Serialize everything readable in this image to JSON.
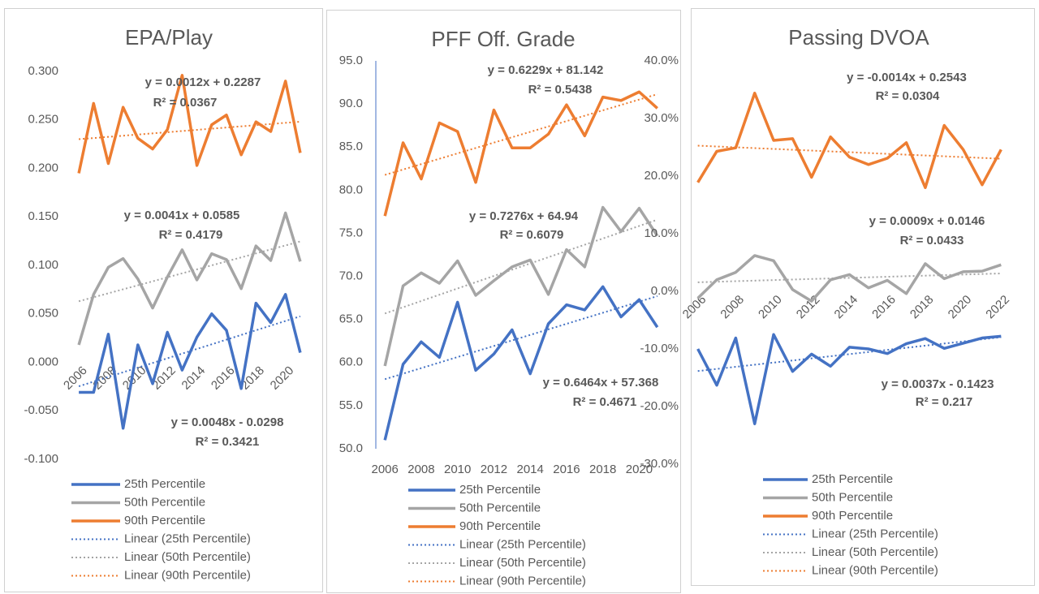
{
  "chart_data": [
    {
      "type": "line",
      "title": "EPA/Play",
      "x": [
        2006,
        2007,
        2008,
        2009,
        2010,
        2011,
        2012,
        2013,
        2014,
        2015,
        2016,
        2017,
        2018,
        2019,
        2020,
        2021
      ],
      "xlim": [
        2005.5,
        2021.5
      ],
      "xticks": [
        2006,
        2008,
        2010,
        2012,
        2014,
        2016,
        2018,
        2020
      ],
      "ylim": [
        -0.1,
        0.3
      ],
      "yticks": [
        {
          "value": -0.1,
          "label": "-0.100"
        },
        {
          "value": -0.05,
          "label": "-0.050"
        },
        {
          "value": 0,
          "label": "0.000"
        },
        {
          "value": 0.05,
          "label": "0.050"
        },
        {
          "value": 0.1,
          "label": "0.100"
        },
        {
          "value": 0.15,
          "label": "0.150"
        },
        {
          "value": 0.2,
          "label": "0.200"
        },
        {
          "value": 0.25,
          "label": "0.250"
        },
        {
          "value": 0.3,
          "label": "0.300"
        }
      ],
      "series": [
        {
          "name": "25th Percentile",
          "color": "#4472c4",
          "values": [
            -0.031,
            -0.031,
            0.029,
            -0.068,
            0.018,
            -0.022,
            0.031,
            -0.008,
            0.026,
            0.05,
            0.033,
            -0.027,
            0.061,
            0.041,
            0.07,
            0.01
          ],
          "trendline": {
            "name": "Linear (25th Percentile)",
            "equation": "y = 0.0048x - 0.0298",
            "r_squared": "R² = 0.3421"
          }
        },
        {
          "name": "50th Percentile",
          "color": "#a5a5a5",
          "values": [
            0.018,
            0.07,
            0.098,
            0.107,
            0.086,
            0.056,
            0.088,
            0.116,
            0.085,
            0.112,
            0.106,
            0.076,
            0.12,
            0.105,
            0.154,
            0.104
          ],
          "trendline": {
            "name": "Linear (50th Percentile)",
            "equation": "y = 0.0041x + 0.0585",
            "r_squared": "R² = 0.4179"
          }
        },
        {
          "name": "90th Percentile",
          "color": "#ed7d31",
          "values": [
            0.195,
            0.267,
            0.205,
            0.263,
            0.231,
            0.22,
            0.24,
            0.296,
            0.203,
            0.245,
            0.255,
            0.214,
            0.248,
            0.238,
            0.29,
            0.216
          ],
          "trendline": {
            "name": "Linear (90th Percentile)",
            "equation": "y = 0.0012x + 0.2287",
            "r_squared": "R² = 0.0367"
          }
        }
      ]
    },
    {
      "type": "line",
      "title": "PFF Off. Grade",
      "x": [
        2006,
        2007,
        2008,
        2009,
        2010,
        2011,
        2012,
        2013,
        2014,
        2015,
        2016,
        2017,
        2018,
        2019,
        2020,
        2021
      ],
      "xlim": [
        2005.5,
        2021.5
      ],
      "xticks": [
        2006,
        2008,
        2010,
        2012,
        2014,
        2016,
        2018,
        2020
      ],
      "ylim": [
        50,
        95
      ],
      "yticks": [
        {
          "value": 50,
          "label": "50.0"
        },
        {
          "value": 55,
          "label": "55.0"
        },
        {
          "value": 60,
          "label": "60.0"
        },
        {
          "value": 65,
          "label": "65.0"
        },
        {
          "value": 70,
          "label": "70.0"
        },
        {
          "value": 75,
          "label": "75.0"
        },
        {
          "value": 80,
          "label": "80.0"
        },
        {
          "value": 85,
          "label": "85.0"
        },
        {
          "value": 90,
          "label": "90.0"
        },
        {
          "value": 95,
          "label": "95.0"
        }
      ],
      "series": [
        {
          "name": "25th Percentile",
          "color": "#4472c4",
          "values": [
            51.0,
            59.8,
            62.4,
            60.6,
            67.0,
            59.1,
            61.0,
            63.8,
            58.7,
            64.5,
            66.7,
            66.1,
            68.8,
            65.3,
            67.3,
            64.1
          ],
          "trendline": {
            "name": "Linear (25th Percentile)",
            "equation": "y = 0.6464x + 57.368",
            "r_squared": "R² = 0.4671"
          }
        },
        {
          "name": "50th Percentile",
          "color": "#a5a5a5",
          "values": [
            59.6,
            68.9,
            70.4,
            69.2,
            71.8,
            67.8,
            69.5,
            71.1,
            71.9,
            67.9,
            73.1,
            71.1,
            78.0,
            75.2,
            77.9,
            74.7
          ],
          "trendline": {
            "name": "Linear (50th Percentile)",
            "equation": "y = 0.7276x + 64.94",
            "r_squared": "R² = 0.6079"
          }
        },
        {
          "name": "90th Percentile",
          "color": "#ed7d31",
          "values": [
            77.0,
            85.5,
            81.3,
            87.8,
            86.8,
            80.9,
            89.3,
            84.9,
            84.9,
            86.5,
            89.9,
            86.3,
            90.8,
            90.4,
            91.4,
            89.5
          ],
          "trendline": {
            "name": "Linear (90th Percentile)",
            "equation": "y = 0.6229x + 81.142",
            "r_squared": "R² = 0.5438"
          }
        }
      ]
    },
    {
      "type": "line",
      "title": "Passing DVOA",
      "x": [
        2006,
        2007,
        2008,
        2009,
        2010,
        2011,
        2012,
        2013,
        2014,
        2015,
        2016,
        2017,
        2018,
        2019,
        2020,
        2021,
        2022
      ],
      "xlim": [
        2005.5,
        2022.5
      ],
      "xticks": [
        2006,
        2008,
        2010,
        2012,
        2014,
        2016,
        2018,
        2020,
        2022
      ],
      "ylim": [
        -30,
        40
      ],
      "yticks": [
        {
          "value": -30,
          "label": "-30.0%"
        },
        {
          "value": -20,
          "label": "-20.0%"
        },
        {
          "value": -10,
          "label": "-10.0%"
        },
        {
          "value": 0,
          "label": "0.0%"
        },
        {
          "value": 10,
          "label": "10.0%"
        },
        {
          "value": 20,
          "label": "20.0%"
        },
        {
          "value": 30,
          "label": "30.0%"
        },
        {
          "value": 40,
          "label": "40.0%"
        }
      ],
      "series": [
        {
          "name": "25th Percentile",
          "color": "#4472c4",
          "values": [
            -10.0,
            -16.3,
            -8.1,
            -23.0,
            -7.5,
            -13.9,
            -10.9,
            -13.0,
            -9.7,
            -10.0,
            -10.8,
            -9.1,
            -8.2,
            -9.9,
            -9.0,
            -8.1,
            -7.8
          ],
          "trendline": {
            "name": "Linear (25th Percentile)",
            "equation": "y = 0.0037x - 0.1423",
            "r_squared": "R² = 0.217"
          }
        },
        {
          "name": "50th Percentile",
          "color": "#a5a5a5",
          "values": [
            -1.2,
            2.0,
            3.3,
            6.2,
            5.3,
            0.3,
            -1.7,
            2.0,
            2.9,
            0.6,
            1.9,
            -0.4,
            4.8,
            2.2,
            3.4,
            3.5,
            4.6
          ],
          "trendline": {
            "name": "Linear (50th Percentile)",
            "equation": "y = 0.0009x + 0.0146",
            "r_squared": "R² = 0.0433"
          }
        },
        {
          "name": "90th Percentile",
          "color": "#ed7d31",
          "values": [
            18.9,
            24.3,
            24.9,
            34.4,
            26.2,
            26.5,
            19.8,
            26.8,
            23.3,
            22.0,
            23.1,
            25.8,
            18.0,
            28.8,
            24.6,
            18.5,
            24.6
          ],
          "trendline": {
            "name": "Linear (90th Percentile)",
            "equation": "y = -0.0014x + 0.2543",
            "r_squared": "R² = 0.0304"
          }
        }
      ]
    }
  ]
}
